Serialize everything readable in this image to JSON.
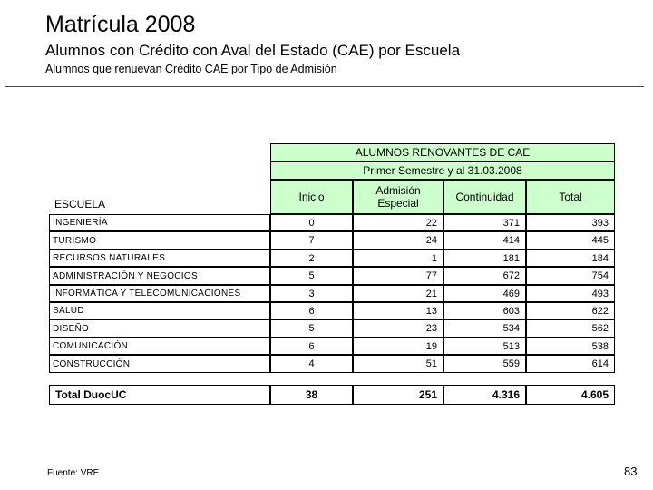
{
  "header": {
    "title": "Matrícula 2008",
    "subtitle": "Alumnos con Crédito con Aval del Estado (CAE) por Escuela",
    "subsubtitle": "Alumnos que renuevan Crédito CAE por Tipo de Admisión"
  },
  "table": {
    "group_header": "ALUMNOS RENOVANTES DE CAE",
    "period_header": "Primer Semestre y al 31.03.2008",
    "school_header": "ESCUELA",
    "columns": [
      "Inicio",
      "Admisión Especial",
      "Continuidad",
      "Total"
    ],
    "rows": [
      {
        "school": "INGENIERÍA",
        "values": [
          "0",
          "22",
          "371",
          "393"
        ]
      },
      {
        "school": "TURISMO",
        "values": [
          "7",
          "24",
          "414",
          "445"
        ]
      },
      {
        "school": "RECURSOS NATURALES",
        "values": [
          "2",
          "1",
          "181",
          "184"
        ]
      },
      {
        "school": "ADMINISTRACIÓN Y NEGOCIOS",
        "values": [
          "5",
          "77",
          "672",
          "754"
        ]
      },
      {
        "school": "INFORMÁTICA Y TELECOMUNICACIONES",
        "values": [
          "3",
          "21",
          "469",
          "493"
        ]
      },
      {
        "school": "SALUD",
        "values": [
          "6",
          "13",
          "603",
          "622"
        ]
      },
      {
        "school": "DISEÑO",
        "values": [
          "5",
          "23",
          "534",
          "562"
        ]
      },
      {
        "school": "COMUNICACIÓN",
        "values": [
          "6",
          "19",
          "513",
          "538"
        ]
      },
      {
        "school": "CONSTRUCCIÓN",
        "values": [
          "4",
          "51",
          "559",
          "614"
        ]
      }
    ],
    "total_row": {
      "school": "Total DuocUC",
      "values": [
        "38",
        "251",
        "4.316",
        "4.605"
      ]
    }
  },
  "footer": {
    "source": "Fuente: VRE",
    "page_number": "83"
  },
  "colors": {
    "header_fill": "#ccffcc",
    "rule": "#c8102e"
  }
}
